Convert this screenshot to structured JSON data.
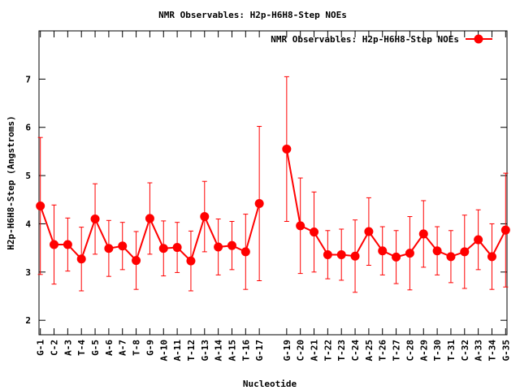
{
  "chart_data": {
    "type": "line",
    "title": "NMR Observables: H2p-H6H8-Step NOEs",
    "xlabel": "Nucleotide",
    "ylabel": "H2p-H6H8-Step (Angstroms)",
    "ylim": [
      1.7,
      8.0
    ],
    "yticks": [
      2,
      3,
      4,
      5,
      6,
      7
    ],
    "legend_position": "top-right",
    "grid": false,
    "series_color": "#ff0000",
    "series": [
      {
        "name": "NMR Observables: H2p-H6H8-Step NOEs",
        "points": [
          {
            "label": "G-1",
            "x": 1,
            "y": 4.37,
            "err": 1.42
          },
          {
            "label": "C-2",
            "x": 2,
            "y": 3.57,
            "err": 0.82
          },
          {
            "label": "A-3",
            "x": 3,
            "y": 3.57,
            "err": 0.55
          },
          {
            "label": "T-4",
            "x": 4,
            "y": 3.27,
            "err": 0.66
          },
          {
            "label": "G-5",
            "x": 5,
            "y": 4.1,
            "err": 0.73
          },
          {
            "label": "A-6",
            "x": 6,
            "y": 3.49,
            "err": 0.58
          },
          {
            "label": "A-7",
            "x": 7,
            "y": 3.54,
            "err": 0.49
          },
          {
            "label": "T-8",
            "x": 8,
            "y": 3.24,
            "err": 0.6
          },
          {
            "label": "G-9",
            "x": 9,
            "y": 4.11,
            "err": 0.74
          },
          {
            "label": "A-10",
            "x": 10,
            "y": 3.49,
            "err": 0.57
          },
          {
            "label": "A-11",
            "x": 11,
            "y": 3.51,
            "err": 0.52
          },
          {
            "label": "T-12",
            "x": 12,
            "y": 3.23,
            "err": 0.62
          },
          {
            "label": "G-13",
            "x": 13,
            "y": 4.15,
            "err": 0.73
          },
          {
            "label": "A-14",
            "x": 14,
            "y": 3.52,
            "err": 0.58
          },
          {
            "label": "A-15",
            "x": 15,
            "y": 3.55,
            "err": 0.5
          },
          {
            "label": "T-16",
            "x": 16,
            "y": 3.42,
            "err": 0.78
          },
          {
            "label": "G-17",
            "x": 17,
            "y": 4.42,
            "err": 1.6
          },
          {
            "label": "G-19",
            "x": 19,
            "y": 5.55,
            "err": 1.5
          },
          {
            "label": "C-20",
            "x": 20,
            "y": 3.96,
            "err": 0.99
          },
          {
            "label": "A-21",
            "x": 21,
            "y": 3.83,
            "err": 0.83
          },
          {
            "label": "T-22",
            "x": 22,
            "y": 3.36,
            "err": 0.5
          },
          {
            "label": "T-23",
            "x": 23,
            "y": 3.36,
            "err": 0.53
          },
          {
            "label": "C-24",
            "x": 24,
            "y": 3.33,
            "err": 0.75
          },
          {
            "label": "A-25",
            "x": 25,
            "y": 3.84,
            "err": 0.7
          },
          {
            "label": "T-26",
            "x": 26,
            "y": 3.44,
            "err": 0.5
          },
          {
            "label": "T-27",
            "x": 27,
            "y": 3.31,
            "err": 0.55
          },
          {
            "label": "C-28",
            "x": 28,
            "y": 3.39,
            "err": 0.76
          },
          {
            "label": "A-29",
            "x": 29,
            "y": 3.79,
            "err": 0.69
          },
          {
            "label": "T-30",
            "x": 30,
            "y": 3.44,
            "err": 0.5
          },
          {
            "label": "T-31",
            "x": 31,
            "y": 3.32,
            "err": 0.54
          },
          {
            "label": "C-32",
            "x": 32,
            "y": 3.42,
            "err": 0.76
          },
          {
            "label": "A-33",
            "x": 33,
            "y": 3.67,
            "err": 0.62
          },
          {
            "label": "T-34",
            "x": 34,
            "y": 3.32,
            "err": 0.68
          },
          {
            "label": "G-35",
            "x": 35,
            "y": 3.87,
            "err": 1.18
          }
        ]
      }
    ]
  }
}
